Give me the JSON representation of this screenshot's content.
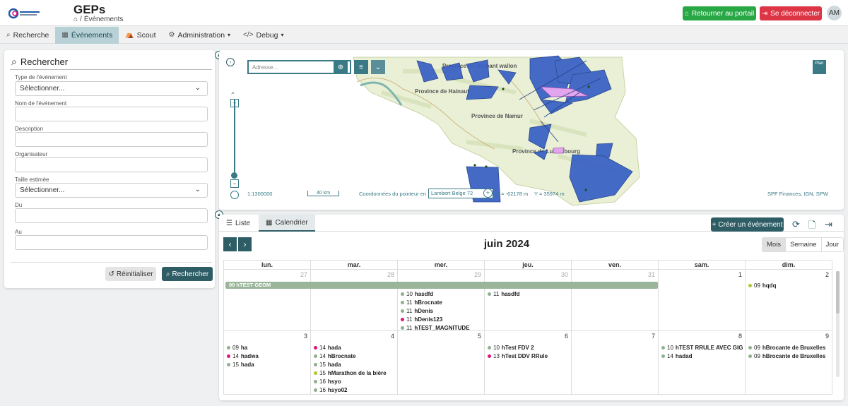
{
  "header": {
    "app_title": "GEPs",
    "breadcrumb_sep": "/",
    "breadcrumb_current": "Événements",
    "portal_button": "Retourner au portail",
    "logout_button": "Se déconnecter",
    "avatar_initials": "AM"
  },
  "nav": {
    "items": [
      {
        "label": "Recherche",
        "icon": "search-icon"
      },
      {
        "label": "Événements",
        "icon": "calendar-icon",
        "active": true
      },
      {
        "label": "Scout",
        "icon": "scout-icon"
      },
      {
        "label": "Administration",
        "icon": "gear-icon",
        "dropdown": true
      },
      {
        "label": "Debug",
        "icon": "code-icon",
        "dropdown": true
      }
    ]
  },
  "search": {
    "title": "Rechercher",
    "fields": {
      "type_label": "Type de l'événement",
      "type_value": "Sélectionner...",
      "name_label": "Nom de l'événement",
      "description_label": "Description",
      "organizer_label": "Organisateur",
      "size_label": "Taille estimée",
      "size_value": "Sélectionner...",
      "from_label": "Du",
      "to_label": "Au"
    },
    "reset_button": "Réinitialiser",
    "search_button": "Rechercher"
  },
  "map": {
    "address_placeholder": "Adresse...",
    "plan_button": "Plan",
    "scale_text": "1:1300000",
    "scale_bar_label": "40 km",
    "coords_label": "Coordonnées du pointeur en",
    "projection": "Lambert Belge 72",
    "x_readout": "X = -62178 m",
    "y_readout": "Y = 35974 m",
    "attribution": "SPF Finances, IGN, SPW",
    "labels": {
      "brabant": "Province du Brabant wallon",
      "hainaut": "Province de Hainaut",
      "namur": "Province de Namur",
      "luxembourg": "Province de Luxembourg"
    },
    "colors": {
      "polygon": "#3b63c4",
      "highlight": "#e2a6ee",
      "land": "#e9f0d6",
      "accent": "#3a7a86"
    }
  },
  "calendar": {
    "tabs": {
      "list": "Liste",
      "calendar": "Calendrier"
    },
    "create_button": "Créer un événement",
    "title": "juin 2024",
    "views": {
      "month": "Mois",
      "week": "Semaine",
      "day": "Jour"
    },
    "weekdays": [
      "lun.",
      "mar.",
      "mer.",
      "jeu.",
      "ven.",
      "sam.",
      "dim."
    ],
    "week1": {
      "days": [
        "27",
        "28",
        "29",
        "30",
        "31",
        "1",
        "2"
      ],
      "span_event": "00 hTEST GEOM",
      "wed_events": [
        {
          "time": "10",
          "title": "hasdfd",
          "color": "#8fb08f"
        },
        {
          "time": "11",
          "title": "hBrocnate",
          "color": "#8fb08f"
        },
        {
          "time": "11",
          "title": "hDenis",
          "color": "#8fb08f"
        },
        {
          "time": "11",
          "title": "hDenis123",
          "color": "#e0157a"
        },
        {
          "time": "11",
          "title": "hTEST_MAGNITUDE",
          "color": "#8fb08f"
        }
      ],
      "thu_events": [
        {
          "time": "11",
          "title": "hasdfd",
          "color": "#8fb08f"
        }
      ],
      "sun_events": [
        {
          "time": "09",
          "title": "hqdq",
          "color": "#b5c42a"
        }
      ]
    },
    "week2": {
      "days": [
        "3",
        "4",
        "5",
        "6",
        "7",
        "8",
        "9"
      ],
      "mon_events": [
        {
          "time": "09",
          "title": "ha",
          "color": "#8fb08f"
        },
        {
          "time": "14",
          "title": "hadwa",
          "color": "#e0157a"
        },
        {
          "time": "15",
          "title": "hada",
          "color": "#8fb08f"
        }
      ],
      "tue_events": [
        {
          "time": "14",
          "title": "hada",
          "color": "#e0157a"
        },
        {
          "time": "14",
          "title": "hBrocnate",
          "color": "#8fb08f"
        },
        {
          "time": "15",
          "title": "hada",
          "color": "#8fb08f"
        },
        {
          "time": "15",
          "title": "hMarathon de la bière",
          "color": "#b5c42a"
        },
        {
          "time": "16",
          "title": "hsyo",
          "color": "#8fb08f"
        },
        {
          "time": "16",
          "title": "hsyo02",
          "color": "#8fb08f"
        }
      ],
      "thu_events": [
        {
          "time": "10",
          "title": "hTest FDV 2",
          "color": "#8fb08f"
        },
        {
          "time": "13",
          "title": "hTest DDV RRule",
          "color": "#e0157a"
        }
      ],
      "sat_events": [
        {
          "time": "10",
          "title": "hTEST RRULE AVEC GIG",
          "color": "#8fb08f"
        },
        {
          "time": "14",
          "title": "hadad",
          "color": "#8fb08f"
        }
      ],
      "sun_events": [
        {
          "time": "09",
          "title": "hBrocante de Bruxelles",
          "color": "#8fb08f"
        },
        {
          "time": "09",
          "title": "hBrocante de Bruxelles",
          "color": "#8fb08f"
        }
      ]
    }
  }
}
